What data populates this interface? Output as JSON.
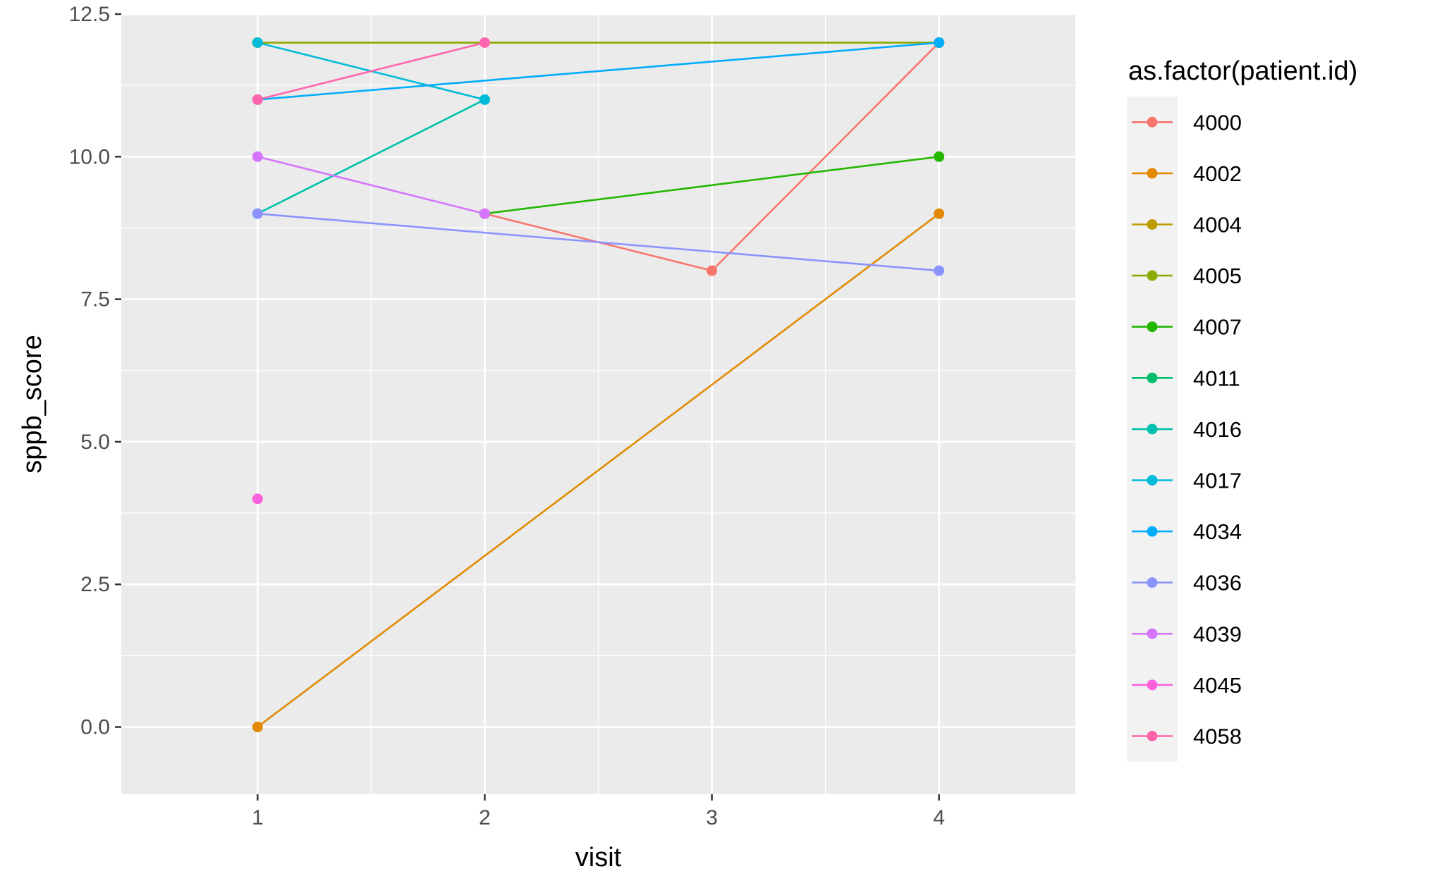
{
  "chart_data": {
    "type": "line",
    "title": "",
    "xlabel": "visit",
    "ylabel": "sppb_score",
    "xlim": [
      0.4,
      4.6
    ],
    "ylim": [
      -1.18,
      12.5
    ],
    "x_ticks": [
      1,
      2,
      3,
      4
    ],
    "x_tick_labels": [
      "1",
      "2",
      "3",
      "4"
    ],
    "y_ticks": [
      0,
      2.5,
      5,
      7.5,
      10,
      12.5
    ],
    "y_tick_labels": [
      "0.0",
      "2.5",
      "5.0",
      "7.5",
      "10.0",
      "12.5"
    ],
    "grid": true,
    "panel_background": "#EBEBEB",
    "grid_color": "#FFFFFF",
    "legend": {
      "title": "as.factor(patient.id)",
      "placement": "right",
      "background": "#F2F2F2"
    },
    "series": [
      {
        "name": "4000",
        "color": "#F8766D",
        "points": [
          [
            2,
            9
          ],
          [
            3,
            8
          ],
          [
            4,
            12
          ]
        ]
      },
      {
        "name": "4002",
        "color": "#E18A00",
        "points": [
          [
            1,
            0
          ],
          [
            4,
            9
          ]
        ]
      },
      {
        "name": "4004",
        "color": "#BE9C00",
        "points": [
          [
            1,
            12
          ],
          [
            4,
            12
          ]
        ]
      },
      {
        "name": "4005",
        "color": "#8CAB00",
        "points": [
          [
            1,
            12
          ],
          [
            4,
            12
          ]
        ]
      },
      {
        "name": "4007",
        "color": "#24B700",
        "points": [
          [
            2,
            9
          ],
          [
            4,
            10
          ]
        ]
      },
      {
        "name": "4011",
        "color": "#00BE70",
        "points": [
          [
            4,
            12
          ]
        ]
      },
      {
        "name": "4016",
        "color": "#00C1AB",
        "points": [
          [
            1,
            9
          ],
          [
            2,
            11
          ]
        ]
      },
      {
        "name": "4017",
        "color": "#00BBDA",
        "points": [
          [
            1,
            12
          ],
          [
            2,
            11
          ]
        ]
      },
      {
        "name": "4034",
        "color": "#00ACFC",
        "points": [
          [
            1,
            11
          ],
          [
            4,
            12
          ]
        ]
      },
      {
        "name": "4036",
        "color": "#8B93FF",
        "points": [
          [
            1,
            9
          ],
          [
            4,
            8
          ]
        ]
      },
      {
        "name": "4039",
        "color": "#D575FE",
        "points": [
          [
            1,
            10
          ],
          [
            2,
            9
          ]
        ]
      },
      {
        "name": "4045",
        "color": "#F962DD",
        "points": [
          [
            1,
            4
          ]
        ]
      },
      {
        "name": "4058",
        "color": "#FF65AC",
        "points": [
          [
            1,
            11
          ],
          [
            2,
            12
          ]
        ]
      }
    ]
  }
}
